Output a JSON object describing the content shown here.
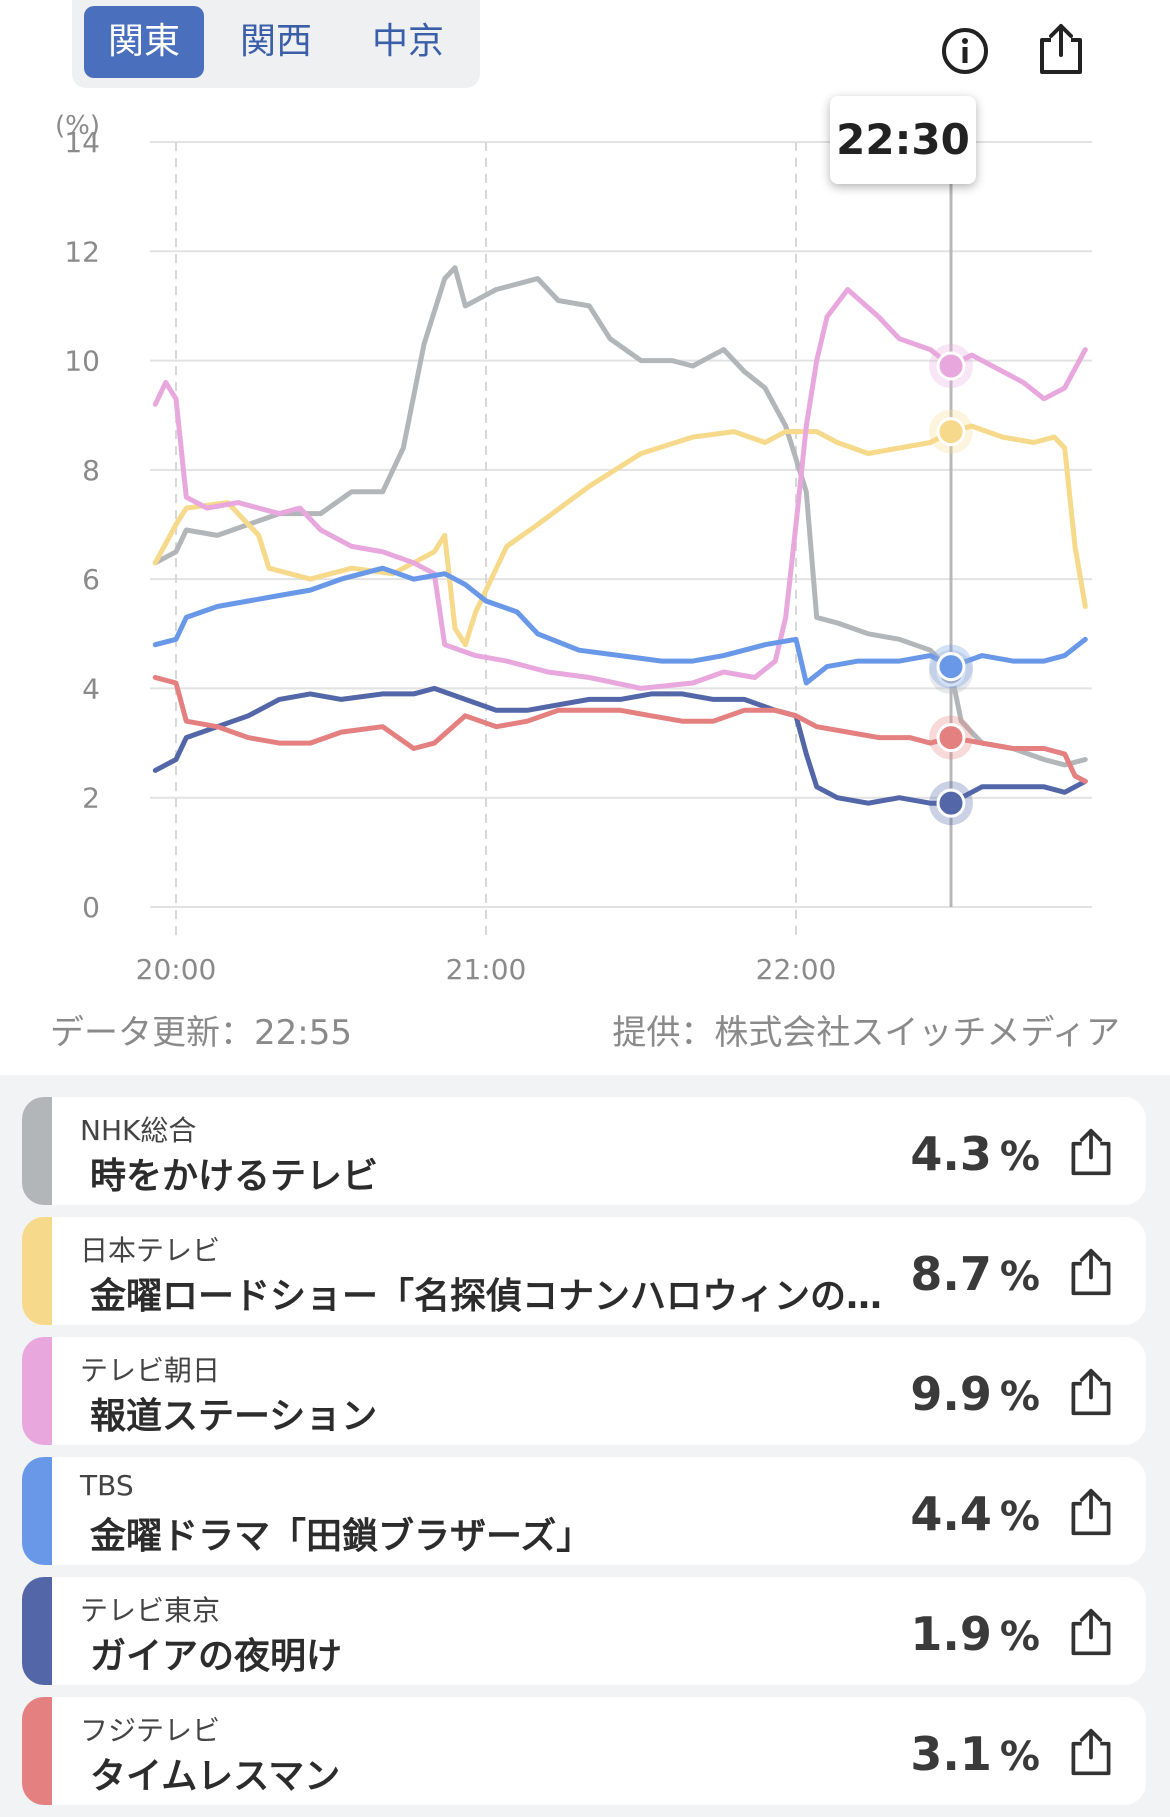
{
  "tabs": [
    {
      "label": "関東",
      "active": true
    },
    {
      "label": "関西",
      "active": false
    },
    {
      "label": "中京",
      "active": false
    }
  ],
  "icons": {
    "info": "info-icon",
    "share": "share-icon"
  },
  "tooltip": {
    "time": "22:30"
  },
  "footer": {
    "updated": "データ更新：22:55",
    "credit": "提供：株式会社スイッチメディア"
  },
  "colors": {
    "primary": "#4a6fbd",
    "grid": "#e2e2e2"
  },
  "chart_data": {
    "type": "line",
    "ylabel": "(%)",
    "ylim": [
      0,
      14
    ],
    "yticks": [
      "0",
      "2",
      "4",
      "6",
      "8",
      "10",
      "12",
      "14"
    ],
    "xticks": [
      {
        "label": "20:00",
        "t": 0
      },
      {
        "label": "21:00",
        "t": 60
      },
      {
        "label": "22:00",
        "t": 120
      }
    ],
    "xlim_minutes_from_2000": [
      -4,
      178
    ],
    "cursor_minutes_from_2000": 150,
    "grid": true,
    "series": [
      {
        "name": "NHK総合",
        "color": "#b3b6b9",
        "points": [
          [
            -4,
            6.3
          ],
          [
            0,
            6.5
          ],
          [
            2,
            6.9
          ],
          [
            8,
            6.8
          ],
          [
            14,
            7.0
          ],
          [
            20,
            7.2
          ],
          [
            28,
            7.2
          ],
          [
            34,
            7.6
          ],
          [
            40,
            7.6
          ],
          [
            44,
            8.4
          ],
          [
            48,
            10.3
          ],
          [
            52,
            11.5
          ],
          [
            54,
            11.7
          ],
          [
            56,
            11.0
          ],
          [
            62,
            11.3
          ],
          [
            70,
            11.5
          ],
          [
            74,
            11.1
          ],
          [
            80,
            11.0
          ],
          [
            84,
            10.4
          ],
          [
            90,
            10.0
          ],
          [
            96,
            10.0
          ],
          [
            100,
            9.9
          ],
          [
            106,
            10.2
          ],
          [
            110,
            9.8
          ],
          [
            114,
            9.5
          ],
          [
            118,
            8.8
          ],
          [
            122,
            7.6
          ],
          [
            124,
            5.3
          ],
          [
            128,
            5.2
          ],
          [
            134,
            5.0
          ],
          [
            140,
            4.9
          ],
          [
            146,
            4.7
          ],
          [
            150,
            4.3
          ],
          [
            152,
            3.4
          ],
          [
            156,
            3.0
          ],
          [
            162,
            2.9
          ],
          [
            168,
            2.7
          ],
          [
            172,
            2.6
          ],
          [
            176,
            2.7
          ]
        ]
      },
      {
        "name": "日本テレビ",
        "color": "#f6d98a",
        "points": [
          [
            -4,
            6.3
          ],
          [
            0,
            7.0
          ],
          [
            2,
            7.3
          ],
          [
            10,
            7.4
          ],
          [
            16,
            6.8
          ],
          [
            18,
            6.2
          ],
          [
            26,
            6.0
          ],
          [
            34,
            6.2
          ],
          [
            42,
            6.1
          ],
          [
            50,
            6.5
          ],
          [
            52,
            6.8
          ],
          [
            54,
            5.1
          ],
          [
            56,
            4.8
          ],
          [
            58,
            5.4
          ],
          [
            64,
            6.6
          ],
          [
            70,
            7.0
          ],
          [
            80,
            7.7
          ],
          [
            90,
            8.3
          ],
          [
            100,
            8.6
          ],
          [
            108,
            8.7
          ],
          [
            114,
            8.5
          ],
          [
            118,
            8.7
          ],
          [
            124,
            8.7
          ],
          [
            128,
            8.5
          ],
          [
            134,
            8.3
          ],
          [
            140,
            8.4
          ],
          [
            146,
            8.5
          ],
          [
            150,
            8.7
          ],
          [
            154,
            8.8
          ],
          [
            160,
            8.6
          ],
          [
            166,
            8.5
          ],
          [
            170,
            8.6
          ],
          [
            172,
            8.4
          ],
          [
            174,
            6.6
          ],
          [
            176,
            5.5
          ]
        ]
      },
      {
        "name": "テレビ朝日",
        "color": "#e8a8de",
        "points": [
          [
            -4,
            9.2
          ],
          [
            -2,
            9.6
          ],
          [
            0,
            9.3
          ],
          [
            2,
            7.5
          ],
          [
            6,
            7.3
          ],
          [
            12,
            7.4
          ],
          [
            20,
            7.2
          ],
          [
            24,
            7.3
          ],
          [
            28,
            6.9
          ],
          [
            34,
            6.6
          ],
          [
            40,
            6.5
          ],
          [
            46,
            6.3
          ],
          [
            50,
            6.1
          ],
          [
            52,
            4.8
          ],
          [
            58,
            4.6
          ],
          [
            64,
            4.5
          ],
          [
            72,
            4.3
          ],
          [
            80,
            4.2
          ],
          [
            90,
            4.0
          ],
          [
            100,
            4.1
          ],
          [
            106,
            4.3
          ],
          [
            112,
            4.2
          ],
          [
            116,
            4.5
          ],
          [
            118,
            5.3
          ],
          [
            120,
            7.0
          ],
          [
            122,
            8.8
          ],
          [
            124,
            10.0
          ],
          [
            126,
            10.8
          ],
          [
            130,
            11.3
          ],
          [
            136,
            10.8
          ],
          [
            140,
            10.4
          ],
          [
            146,
            10.2
          ],
          [
            150,
            9.9
          ],
          [
            154,
            10.1
          ],
          [
            160,
            9.8
          ],
          [
            164,
            9.6
          ],
          [
            168,
            9.3
          ],
          [
            172,
            9.5
          ],
          [
            176,
            10.2
          ]
        ]
      },
      {
        "name": "TBS",
        "color": "#6a98e8",
        "points": [
          [
            -4,
            4.8
          ],
          [
            0,
            4.9
          ],
          [
            2,
            5.3
          ],
          [
            8,
            5.5
          ],
          [
            14,
            5.6
          ],
          [
            20,
            5.7
          ],
          [
            26,
            5.8
          ],
          [
            32,
            6.0
          ],
          [
            40,
            6.2
          ],
          [
            46,
            6.0
          ],
          [
            52,
            6.1
          ],
          [
            56,
            5.9
          ],
          [
            60,
            5.6
          ],
          [
            66,
            5.4
          ],
          [
            70,
            5.0
          ],
          [
            78,
            4.7
          ],
          [
            86,
            4.6
          ],
          [
            94,
            4.5
          ],
          [
            100,
            4.5
          ],
          [
            106,
            4.6
          ],
          [
            114,
            4.8
          ],
          [
            120,
            4.9
          ],
          [
            122,
            4.1
          ],
          [
            126,
            4.4
          ],
          [
            132,
            4.5
          ],
          [
            140,
            4.5
          ],
          [
            146,
            4.6
          ],
          [
            150,
            4.4
          ],
          [
            156,
            4.6
          ],
          [
            162,
            4.5
          ],
          [
            168,
            4.5
          ],
          [
            172,
            4.6
          ],
          [
            176,
            4.9
          ]
        ]
      },
      {
        "name": "テレビ東京",
        "color": "#5266a8",
        "points": [
          [
            -4,
            2.5
          ],
          [
            0,
            2.7
          ],
          [
            2,
            3.1
          ],
          [
            8,
            3.3
          ],
          [
            14,
            3.5
          ],
          [
            20,
            3.8
          ],
          [
            26,
            3.9
          ],
          [
            32,
            3.8
          ],
          [
            40,
            3.9
          ],
          [
            46,
            3.9
          ],
          [
            50,
            4.0
          ],
          [
            56,
            3.8
          ],
          [
            62,
            3.6
          ],
          [
            68,
            3.6
          ],
          [
            74,
            3.7
          ],
          [
            80,
            3.8
          ],
          [
            86,
            3.8
          ],
          [
            92,
            3.9
          ],
          [
            98,
            3.9
          ],
          [
            104,
            3.8
          ],
          [
            110,
            3.8
          ],
          [
            116,
            3.6
          ],
          [
            120,
            3.5
          ],
          [
            122,
            2.8
          ],
          [
            124,
            2.2
          ],
          [
            128,
            2.0
          ],
          [
            134,
            1.9
          ],
          [
            140,
            2.0
          ],
          [
            146,
            1.9
          ],
          [
            150,
            1.9
          ],
          [
            156,
            2.2
          ],
          [
            162,
            2.2
          ],
          [
            168,
            2.2
          ],
          [
            172,
            2.1
          ],
          [
            176,
            2.3
          ]
        ]
      },
      {
        "name": "フジテレビ",
        "color": "#e48080",
        "points": [
          [
            -4,
            4.2
          ],
          [
            0,
            4.1
          ],
          [
            2,
            3.4
          ],
          [
            8,
            3.3
          ],
          [
            14,
            3.1
          ],
          [
            20,
            3.0
          ],
          [
            26,
            3.0
          ],
          [
            32,
            3.2
          ],
          [
            40,
            3.3
          ],
          [
            46,
            2.9
          ],
          [
            50,
            3.0
          ],
          [
            56,
            3.5
          ],
          [
            62,
            3.3
          ],
          [
            68,
            3.4
          ],
          [
            74,
            3.6
          ],
          [
            80,
            3.6
          ],
          [
            86,
            3.6
          ],
          [
            92,
            3.5
          ],
          [
            98,
            3.4
          ],
          [
            104,
            3.4
          ],
          [
            110,
            3.6
          ],
          [
            116,
            3.6
          ],
          [
            120,
            3.5
          ],
          [
            124,
            3.3
          ],
          [
            130,
            3.2
          ],
          [
            136,
            3.1
          ],
          [
            142,
            3.1
          ],
          [
            146,
            3.0
          ],
          [
            150,
            3.1
          ],
          [
            156,
            3.0
          ],
          [
            162,
            2.9
          ],
          [
            168,
            2.9
          ],
          [
            172,
            2.8
          ],
          [
            174,
            2.4
          ],
          [
            176,
            2.3
          ]
        ]
      }
    ]
  },
  "programs": [
    {
      "station": "NHK総合",
      "program": "時をかけるテレビ",
      "rating": "4.3",
      "unit": "%",
      "color": "#b3b6b9"
    },
    {
      "station": "日本テレビ",
      "program": "金曜ロードショー「名探偵コナンハロウィンの花嫁」",
      "rating": "8.7",
      "unit": "%",
      "color": "#f6d98a"
    },
    {
      "station": "テレビ朝日",
      "program": "報道ステーション",
      "rating": "9.9",
      "unit": "%",
      "color": "#e8a8de"
    },
    {
      "station": "TBS",
      "program": "金曜ドラマ「田鎖ブラザーズ」",
      "rating": "4.4",
      "unit": "%",
      "color": "#6a98e8"
    },
    {
      "station": "テレビ東京",
      "program": "ガイアの夜明け",
      "rating": "1.9",
      "unit": "%",
      "color": "#5266a8"
    },
    {
      "station": "フジテレビ",
      "program": "タイムレスマン",
      "rating": "3.1",
      "unit": "%",
      "color": "#e48080"
    }
  ]
}
